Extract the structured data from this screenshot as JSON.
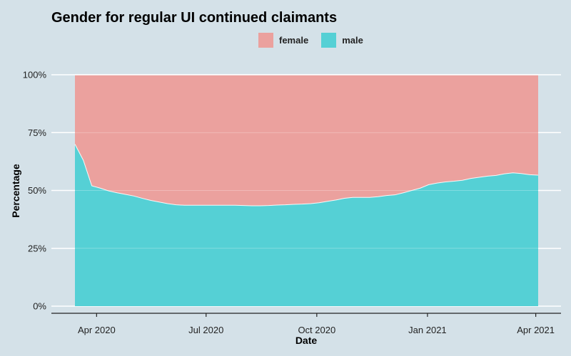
{
  "chart_data": {
    "type": "area",
    "title": "Gender for regular UI continued claimants",
    "xlabel": "Date",
    "ylabel": "Percentage",
    "ylim": [
      0,
      100
    ],
    "y_ticks": [
      0,
      25,
      50,
      75,
      100
    ],
    "y_tick_labels": [
      "0%",
      "25%",
      "50%",
      "75%",
      "100%"
    ],
    "x_tick_dates": [
      "2020-04-01",
      "2020-07-01",
      "2020-10-01",
      "2021-01-01",
      "2021-04-01"
    ],
    "x_tick_labels": [
      "Apr 2020",
      "Jul 2020",
      "Oct 2020",
      "Jan 2021",
      "Apr 2021"
    ],
    "x_range": [
      "2020-03-14",
      "2021-04-03"
    ],
    "stacked": true,
    "stack_normalized": true,
    "grid": true,
    "legend_position": "top",
    "x": [
      "2020-03-14",
      "2020-03-21",
      "2020-03-28",
      "2020-04-04",
      "2020-04-11",
      "2020-04-18",
      "2020-04-25",
      "2020-05-02",
      "2020-05-09",
      "2020-05-16",
      "2020-05-23",
      "2020-05-30",
      "2020-06-06",
      "2020-06-13",
      "2020-06-20",
      "2020-06-27",
      "2020-07-04",
      "2020-07-11",
      "2020-07-18",
      "2020-07-25",
      "2020-08-01",
      "2020-08-08",
      "2020-08-15",
      "2020-08-22",
      "2020-08-29",
      "2020-09-05",
      "2020-09-12",
      "2020-09-19",
      "2020-09-26",
      "2020-10-03",
      "2020-10-10",
      "2020-10-17",
      "2020-10-24",
      "2020-10-31",
      "2020-11-07",
      "2020-11-14",
      "2020-11-21",
      "2020-11-28",
      "2020-12-05",
      "2020-12-12",
      "2020-12-19",
      "2020-12-26",
      "2021-01-02",
      "2021-01-09",
      "2021-01-16",
      "2021-01-23",
      "2021-01-30",
      "2021-02-06",
      "2021-02-13",
      "2021-02-20",
      "2021-02-27",
      "2021-03-06",
      "2021-03-13",
      "2021-03-20",
      "2021-03-27",
      "2021-04-03"
    ],
    "series": [
      {
        "name": "male",
        "color": "#55d0d5",
        "values": [
          70.0,
          63.0,
          52.0,
          51.0,
          49.8,
          49.0,
          48.3,
          47.6,
          46.6,
          45.7,
          45.0,
          44.3,
          43.8,
          43.6,
          43.6,
          43.6,
          43.6,
          43.6,
          43.6,
          43.6,
          43.5,
          43.4,
          43.4,
          43.5,
          43.7,
          43.8,
          44.0,
          44.1,
          44.3,
          44.7,
          45.3,
          45.9,
          46.6,
          47.0,
          47.0,
          47.0,
          47.3,
          47.8,
          48.1,
          49.0,
          50.0,
          51.0,
          52.5,
          53.2,
          53.7,
          54.0,
          54.4,
          55.2,
          55.7,
          56.2,
          56.5,
          57.2,
          57.6,
          57.3,
          56.8,
          56.6
        ]
      },
      {
        "name": "female",
        "color": "#eba19e",
        "values": [
          30.0,
          37.0,
          48.0,
          49.0,
          50.2,
          51.0,
          51.7,
          52.4,
          53.4,
          54.3,
          55.0,
          55.7,
          56.2,
          56.4,
          56.4,
          56.4,
          56.4,
          56.4,
          56.4,
          56.4,
          56.5,
          56.6,
          56.6,
          56.5,
          56.3,
          56.2,
          56.0,
          55.9,
          55.7,
          55.3,
          54.7,
          54.1,
          53.4,
          53.0,
          53.0,
          53.0,
          52.7,
          52.2,
          51.9,
          51.0,
          50.0,
          49.0,
          47.5,
          46.8,
          46.3,
          46.0,
          45.6,
          44.8,
          44.3,
          43.8,
          43.5,
          42.8,
          42.4,
          42.7,
          43.2,
          43.4
        ]
      }
    ]
  },
  "legend": [
    {
      "label": "female",
      "color": "#eba19e"
    },
    {
      "label": "male",
      "color": "#55d0d5"
    }
  ]
}
